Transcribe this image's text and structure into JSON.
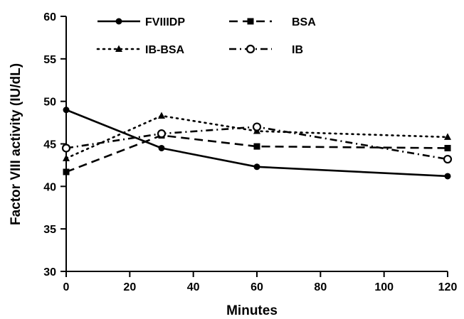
{
  "chart_data": {
    "type": "line",
    "title": "",
    "xlabel": "Minutes",
    "ylabel": "Factor VIII activity (IU/dL)",
    "xlim": [
      0,
      120
    ],
    "ylim": [
      30,
      60
    ],
    "x_ticks": [
      "0",
      "20",
      "40",
      "60",
      "80",
      "100",
      "120"
    ],
    "y_ticks": [
      "30",
      "35",
      "40",
      "45",
      "50",
      "55",
      "60"
    ],
    "grid": false,
    "legend_position": "top",
    "series": [
      {
        "name": "FVIIIDP",
        "line_style": "solid",
        "marker": "filled-circle",
        "points": [
          [
            0,
            49.0
          ],
          [
            30,
            44.5
          ],
          [
            60,
            42.3
          ],
          [
            120,
            41.2
          ]
        ]
      },
      {
        "name": "BSA",
        "line_style": "dashed",
        "marker": "filled-square",
        "points": [
          [
            0,
            41.7
          ],
          [
            30,
            46.0
          ],
          [
            60,
            44.7
          ],
          [
            120,
            44.5
          ]
        ]
      },
      {
        "name": "IB-BSA",
        "line_style": "dotted",
        "marker": "filled-triangle",
        "points": [
          [
            0,
            43.3
          ],
          [
            30,
            48.3
          ],
          [
            60,
            46.5
          ],
          [
            120,
            45.8
          ]
        ]
      },
      {
        "name": "IB",
        "line_style": "dash-dot",
        "marker": "open-circle",
        "points": [
          [
            0,
            44.5
          ],
          [
            30,
            46.2
          ],
          [
            60,
            47.0
          ],
          [
            120,
            43.2
          ]
        ]
      }
    ]
  }
}
